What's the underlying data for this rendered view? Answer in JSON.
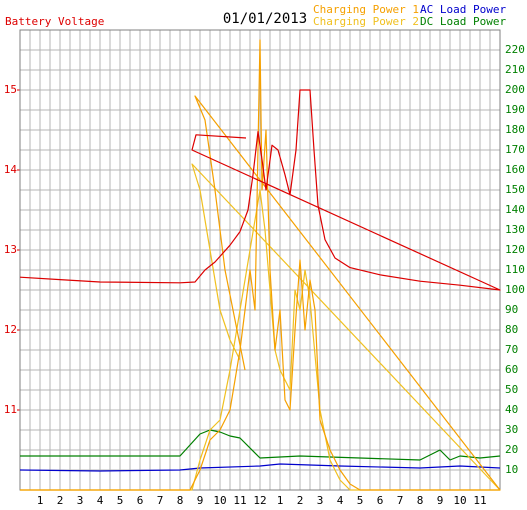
{
  "chart_data": {
    "type": "line",
    "subtitle": "01/01/2013",
    "xlim": [
      0,
      24
    ],
    "xticks": [
      1,
      2,
      3,
      4,
      5,
      6,
      7,
      8,
      9,
      10,
      11,
      12,
      {
        "value": 13,
        "label": "1"
      },
      {
        "value": 14,
        "label": "2"
      },
      {
        "value": 15,
        "label": "3"
      },
      {
        "value": 16,
        "label": "4"
      },
      {
        "value": 17,
        "label": "5"
      },
      {
        "value": 18,
        "label": "6"
      },
      {
        "value": 19,
        "label": "7"
      },
      {
        "value": 20,
        "label": "8"
      },
      {
        "value": 21,
        "label": "9"
      },
      {
        "value": 22,
        "label": "10"
      },
      {
        "value": 23,
        "label": "11"
      }
    ],
    "ylim": [
      10,
      15.75
    ],
    "yticks": [
      11,
      12,
      13,
      14,
      15
    ],
    "y2lim": [
      0,
      230
    ],
    "y2ticks": [
      10,
      20,
      30,
      40,
      50,
      60,
      70,
      80,
      90,
      100,
      110,
      120,
      130,
      140,
      150,
      160,
      170,
      180,
      190,
      200,
      210,
      220
    ],
    "grid": true,
    "series": [
      {
        "name": "Battery Voltage",
        "color": "#dd0000",
        "axis": "y",
        "x": [
          0,
          2,
          4,
          8,
          8.75,
          9.25,
          9.75,
          10.5,
          11,
          11.4,
          11.65,
          11.9,
          12.1,
          12.3,
          12.6,
          12.9,
          13.25,
          13.5,
          13.8,
          14,
          14.5,
          14.7,
          14.9,
          15.25,
          15.75,
          16.5,
          18,
          20,
          22,
          24,
          8.6,
          8.8,
          11.3
        ],
        "values": [
          12.66,
          12.63,
          12.6,
          12.59,
          12.6,
          12.75,
          12.85,
          13.06,
          13.23,
          13.5,
          13.94,
          14.48,
          14.13,
          13.75,
          14.31,
          14.25,
          13.94,
          13.69,
          14.25,
          15,
          15,
          14.25,
          13.56,
          13.13,
          12.9,
          12.78,
          12.69,
          12.61,
          12.56,
          12.5,
          14.25,
          14.44,
          14.4
        ]
      },
      {
        "name": "Charging Power 1",
        "color": "#f5a000",
        "axis": "y2",
        "x": [
          0,
          8.5,
          9,
          9.5,
          10,
          10.5,
          11,
          11.5,
          11.75,
          12,
          12.1,
          12.3,
          12.5,
          12.75,
          13,
          13.25,
          13.5,
          13.75,
          14,
          14.25,
          14.5,
          14.75,
          15,
          15.5,
          16,
          16.5,
          17,
          24,
          8.75,
          9.25,
          9.75,
          10.25,
          10.75,
          11.25
        ],
        "values": [
          0,
          0,
          10,
          25,
          30,
          40,
          70,
          110,
          90,
          225,
          150,
          180,
          110,
          70,
          90,
          45,
          40,
          80,
          115,
          80,
          105,
          90,
          35,
          20,
          10,
          3,
          0,
          0,
          197,
          185,
          150,
          110,
          85,
          60
        ]
      },
      {
        "name": "Charging Power 2",
        "color": "#f0c020",
        "axis": "y2",
        "x": [
          0,
          8.6,
          9,
          9.5,
          10,
          10.5,
          11,
          11.5,
          12,
          12.25,
          12.5,
          12.75,
          13,
          13.5,
          13.75,
          14,
          14.25,
          14.5,
          15,
          15.5,
          16,
          16.5,
          24,
          8.6,
          9,
          9.5,
          10,
          10.5,
          11
        ],
        "values": [
          0,
          0,
          15,
          30,
          35,
          60,
          90,
          120,
          150,
          130,
          100,
          70,
          60,
          50,
          100,
          90,
          110,
          95,
          40,
          15,
          5,
          0,
          0,
          163,
          150,
          120,
          90,
          75,
          65
        ]
      },
      {
        "name": "AC Load Power",
        "color": "#0000cc",
        "axis": "y2",
        "x": [
          0,
          4,
          8,
          9,
          12,
          13,
          16,
          20,
          22,
          24
        ],
        "values": [
          10,
          9.5,
          10,
          11,
          12,
          13,
          12,
          11,
          12,
          11
        ]
      },
      {
        "name": "DC Load Power",
        "color": "#008000",
        "axis": "y2",
        "x": [
          0,
          8,
          9,
          9.5,
          10,
          10.5,
          11,
          12,
          14,
          17,
          20,
          21,
          21.5,
          22,
          23,
          24
        ],
        "values": [
          17,
          17,
          28,
          30,
          29,
          27,
          26,
          16,
          17,
          16,
          15,
          20,
          15,
          17,
          16,
          17
        ]
      }
    ]
  }
}
